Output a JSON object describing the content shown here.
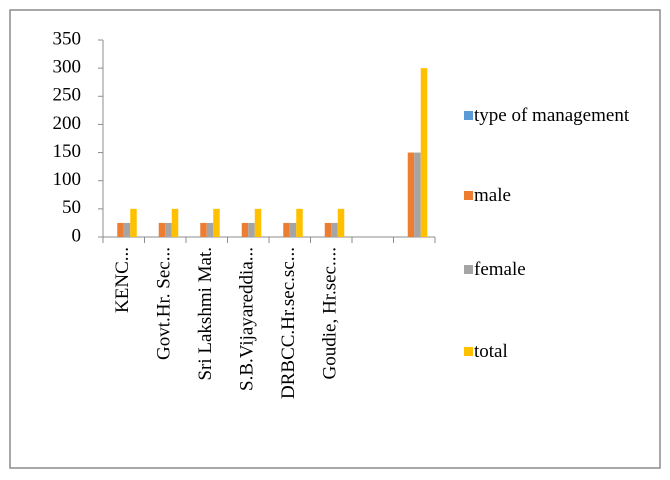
{
  "chart_data": {
    "type": "bar",
    "categories": [
      "KENC...",
      "Govt.Hr. Sec...",
      "Sri Lakshmi Mat.",
      "S.B.Vijayareddia...",
      "DRBCC.Hr.sec.sc...",
      "Goudie, Hr.sec....",
      null,
      null
    ],
    "series": [
      {
        "name": "type of management",
        "color": "#5b9bd5",
        "values": [
          0,
          0,
          0,
          0,
          0,
          0,
          0,
          0
        ]
      },
      {
        "name": "male",
        "color": "#ed7d31",
        "values": [
          25,
          25,
          25,
          25,
          25,
          25,
          0,
          150
        ]
      },
      {
        "name": "female",
        "color": "#a5a5a5",
        "values": [
          25,
          25,
          25,
          25,
          25,
          25,
          0,
          150
        ]
      },
      {
        "name": "total",
        "color": "#ffc000",
        "values": [
          50,
          50,
          50,
          50,
          50,
          50,
          0,
          300
        ]
      }
    ],
    "ylim": [
      0,
      350
    ],
    "yticks": [
      0,
      50,
      100,
      150,
      200,
      250,
      300,
      350
    ],
    "grid": false,
    "legend": "right"
  }
}
